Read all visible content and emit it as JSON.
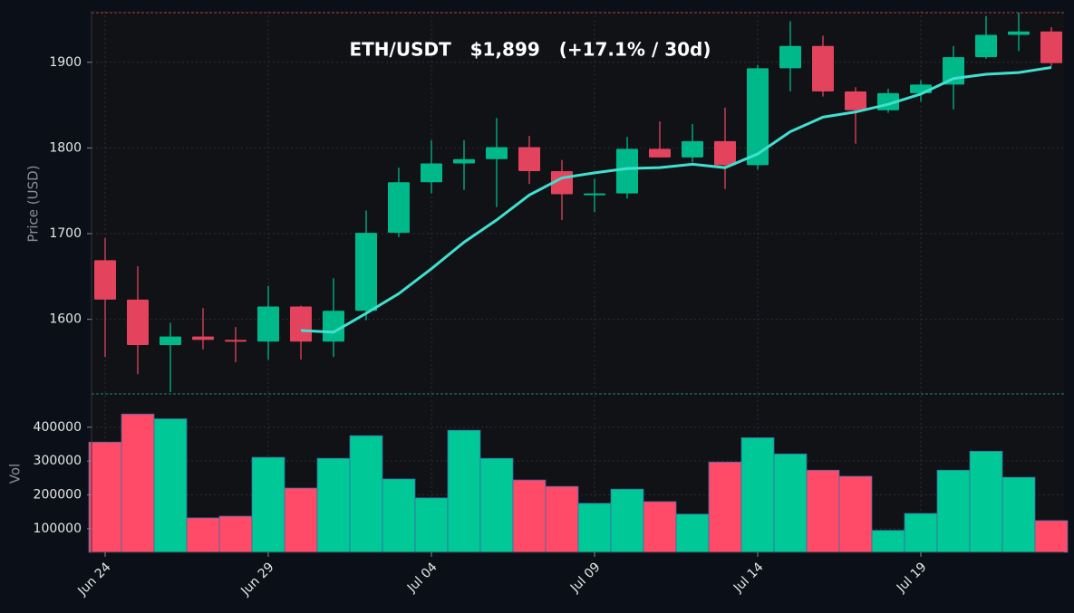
{
  "chart_data": [
    {
      "type": "candlestick",
      "title": "ETH/USDT   $1,899   (+17.1% / 30d)",
      "ylabel": "Price (USD)",
      "up_color": "#00b98a",
      "down_color": "#e3435c",
      "open": [
        1669,
        1623,
        1570,
        1580,
        1576,
        1574,
        1615,
        1574,
        1610,
        1701,
        1760,
        1782,
        1787,
        1801,
        1773,
        1745,
        1747,
        1799,
        1789,
        1808,
        1780,
        1893,
        1919,
        1866,
        1844,
        1864,
        1874,
        1906,
        1932,
        1936
      ],
      "high": [
        1695,
        1662,
        1596,
        1613,
        1591,
        1639,
        1616,
        1648,
        1727,
        1777,
        1809,
        1809,
        1835,
        1814,
        1786,
        1764,
        1813,
        1831,
        1828,
        1847,
        1897,
        1948,
        1931,
        1871,
        1869,
        1879,
        1919,
        1954,
        1958,
        1941
      ],
      "low": [
        1556,
        1536,
        1515,
        1565,
        1550,
        1553,
        1553,
        1556,
        1599,
        1696,
        1747,
        1751,
        1731,
        1758,
        1716,
        1725,
        1741,
        1789,
        1783,
        1752,
        1775,
        1866,
        1860,
        1805,
        1841,
        1854,
        1845,
        1904,
        1913,
        1895
      ],
      "close": [
        1623,
        1570,
        1580,
        1576,
        1574,
        1615,
        1574,
        1610,
        1701,
        1760,
        1782,
        1787,
        1801,
        1773,
        1746,
        1747,
        1799,
        1789,
        1808,
        1780,
        1893,
        1919,
        1866,
        1844,
        1864,
        1874,
        1906,
        1932,
        1936,
        1899
      ],
      "line": {
        "color": "#40e0d0",
        "values": [
          null,
          null,
          null,
          null,
          null,
          null,
          1587,
          1585,
          1607,
          1630,
          1659,
          1690,
          1716,
          1745,
          1765,
          1771,
          1776,
          1777,
          1781,
          1777,
          1793,
          1819,
          1836,
          1842,
          1851,
          1863,
          1881,
          1886,
          1888,
          1894
        ]
      },
      "ylim": [
        1513,
        1960
      ],
      "yticks": [
        1600,
        1700,
        1800,
        1900
      ],
      "grid": true
    },
    {
      "type": "bar",
      "ylabel": "Vol",
      "categories": [
        "Jun 24",
        null,
        null,
        null,
        null,
        "Jun 29",
        null,
        null,
        null,
        null,
        "Jul 04",
        null,
        null,
        null,
        null,
        "Jul 09",
        null,
        null,
        null,
        null,
        "Jul 14",
        null,
        null,
        null,
        null,
        "Jul 19",
        null,
        null,
        null,
        null
      ],
      "values": [
        356000,
        439000,
        425000,
        132000,
        137000,
        311000,
        220000,
        308000,
        375000,
        247000,
        191000,
        391000,
        308000,
        244000,
        225000,
        175000,
        217000,
        180000,
        143000,
        297000,
        369000,
        321000,
        273000,
        255000,
        95000,
        145000,
        273000,
        329000,
        252000,
        124000
      ],
      "colors": [
        "#ff4b68",
        "#ff4b68",
        "#00c896",
        "#ff4b68",
        "#ff4b68",
        "#00c896",
        "#ff4b68",
        "#00c896",
        "#00c896",
        "#00c896",
        "#00c896",
        "#00c896",
        "#00c896",
        "#ff4b68",
        "#ff4b68",
        "#00c896",
        "#00c896",
        "#ff4b68",
        "#00c896",
        "#ff4b68",
        "#00c896",
        "#00c896",
        "#ff4b68",
        "#ff4b68",
        "#00c896",
        "#00c896",
        "#00c896",
        "#00c896",
        "#00c896",
        "#ff4b68"
      ],
      "ylim": [
        30000,
        496000
      ],
      "yticks": [
        100000,
        200000,
        300000,
        400000
      ],
      "grid": true
    }
  ]
}
